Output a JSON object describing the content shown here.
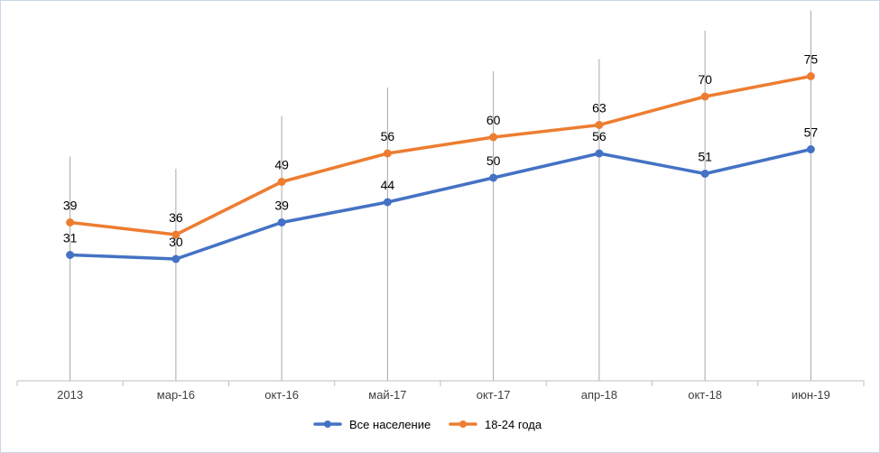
{
  "chart_data": {
    "type": "line",
    "categories": [
      "2013",
      "мар-16",
      "окт-16",
      "май-17",
      "окт-17",
      "апр-18",
      "окт-18",
      "июн-19"
    ],
    "series": [
      {
        "name": "Все население",
        "values": [
          31,
          30,
          39,
          44,
          50,
          56,
          51,
          57
        ],
        "color": "#4472C4"
      },
      {
        "name": "18-24 года",
        "values": [
          39,
          36,
          49,
          56,
          60,
          63,
          70,
          75
        ],
        "color": "#ED7D31"
      }
    ],
    "drop_lines": true,
    "data_labels": true,
    "ylim": [
      0,
      80
    ],
    "grid": false,
    "legend_position": "bottom",
    "colors": {
      "axis": "#bfbfbf",
      "drop_line": "#a6a6a6",
      "tick_text": "#404040"
    }
  }
}
